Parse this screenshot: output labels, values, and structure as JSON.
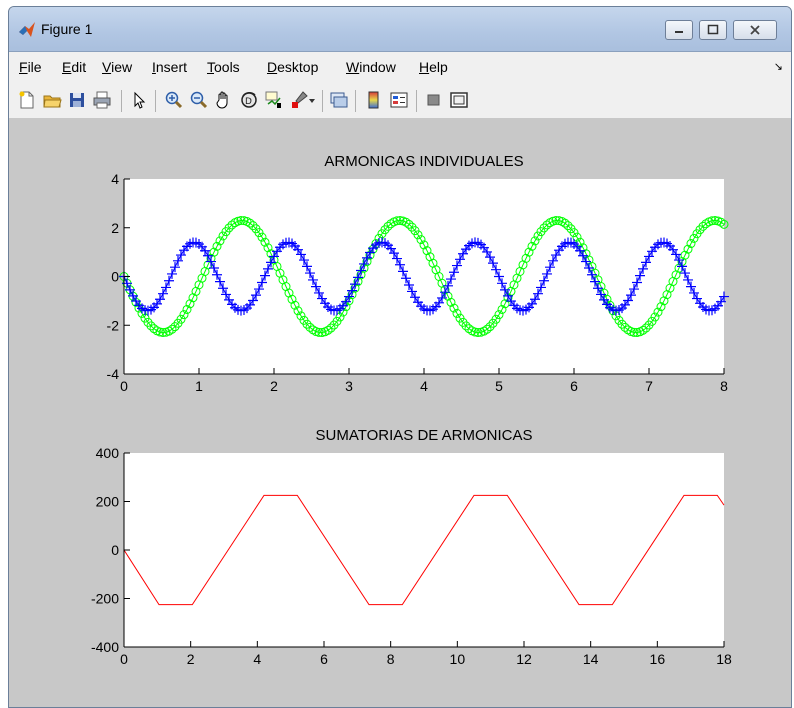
{
  "window": {
    "title": "Figure 1",
    "icon": "matlab-icon",
    "buttons": [
      "minimize-icon",
      "maximize-icon",
      "close-icon"
    ]
  },
  "menu": {
    "items": [
      {
        "label": "File"
      },
      {
        "label": "Edit"
      },
      {
        "label": "View"
      },
      {
        "label": "Insert"
      },
      {
        "label": "Tools"
      },
      {
        "label": "Desktop"
      },
      {
        "label": "Window"
      },
      {
        "label": "Help"
      }
    ]
  },
  "toolbar": {
    "icons": [
      "new-figure-icon",
      "open-file-icon",
      "save-icon",
      "print-icon",
      "edit-plot-icon",
      "zoom-in-icon",
      "zoom-out-icon",
      "pan-icon",
      "rotate-3d-icon",
      "data-cursor-icon",
      "brush-icon",
      "dropdown-icon",
      "link-plot-icon",
      "colorbar-icon",
      "legend-icon",
      "hide-plot-tools-icon",
      "show-plot-tools-icon"
    ]
  },
  "colors": {
    "series1": "#00ff00",
    "series2": "#0000ff",
    "series3": "#ff0000"
  },
  "chart_data": [
    {
      "type": "line",
      "title": "ARMONICAS INDIVIDUALES",
      "xlabel": "",
      "ylabel": "",
      "xlim": [
        0,
        8
      ],
      "ylim": [
        -4,
        4
      ],
      "xticks": [
        0,
        1,
        2,
        3,
        4,
        5,
        6,
        7,
        8
      ],
      "yticks": [
        -4,
        -2,
        0,
        2,
        4
      ],
      "grid": false,
      "series": [
        {
          "marker": "circle",
          "color": "#00ff00",
          "amplitude": 2.3,
          "period": 2.1,
          "phase": "-sin",
          "x_step": 0.04
        },
        {
          "marker": "plus",
          "color": "#0000ff",
          "amplitude": 1.4,
          "period": 1.25,
          "phase": "-sin",
          "x_step": 0.04
        }
      ]
    },
    {
      "type": "line",
      "title": "SUMATORIAS DE ARMONICAS",
      "xlabel": "",
      "ylabel": "",
      "xlim": [
        0,
        18
      ],
      "ylim": [
        -400,
        400
      ],
      "xticks": [
        0,
        2,
        4,
        6,
        8,
        10,
        12,
        14,
        16,
        18
      ],
      "yticks": [
        -400,
        -200,
        0,
        200,
        400
      ],
      "grid": false,
      "series": [
        {
          "color": "#ff0000",
          "x": [
            0,
            1.05,
            2.05,
            4.2,
            5.2,
            7.35,
            8.35,
            10.5,
            11.5,
            13.65,
            14.65,
            16.8,
            17.8,
            18
          ],
          "y": [
            0,
            -225,
            -225,
            225,
            225,
            -225,
            -225,
            225,
            225,
            -225,
            -225,
            225,
            225,
            185
          ]
        }
      ]
    }
  ]
}
